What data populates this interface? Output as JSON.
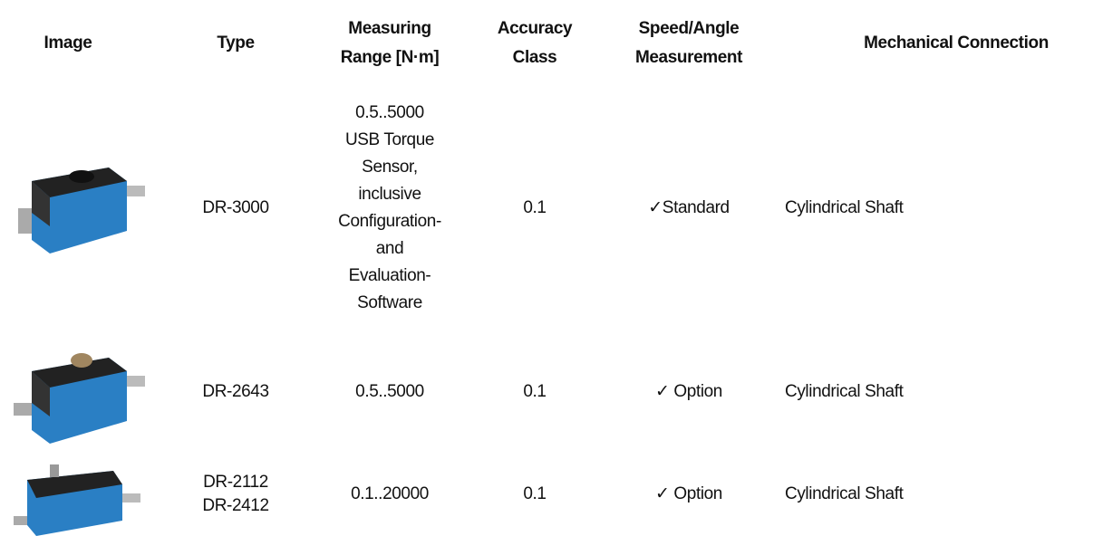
{
  "header": {
    "columns": [
      "Image",
      "Type",
      "Measuring\nRange [N·m]",
      "Accuracy\nClass",
      "Speed/Angle\nMeasurement",
      "Mechanical Connection"
    ]
  },
  "table": {
    "rows": [
      [
        "DR-3000",
        "0.5..5000\nUSB Torque\nSensor,\ninclusive\nConfiguration-\nand\nEvaluation-\nSoftware",
        "0.1",
        "✓Standard",
        "Cylindrical Shaft"
      ],
      [
        "DR-2643",
        "0.5..5000",
        "0.1",
        "✓ Option",
        "Cylindrical Shaft"
      ],
      [
        "DR-2112\nDR-2412",
        "0.1..20000",
        "0.1",
        "✓ Option",
        "Cylindrical Shaft"
      ]
    ]
  }
}
